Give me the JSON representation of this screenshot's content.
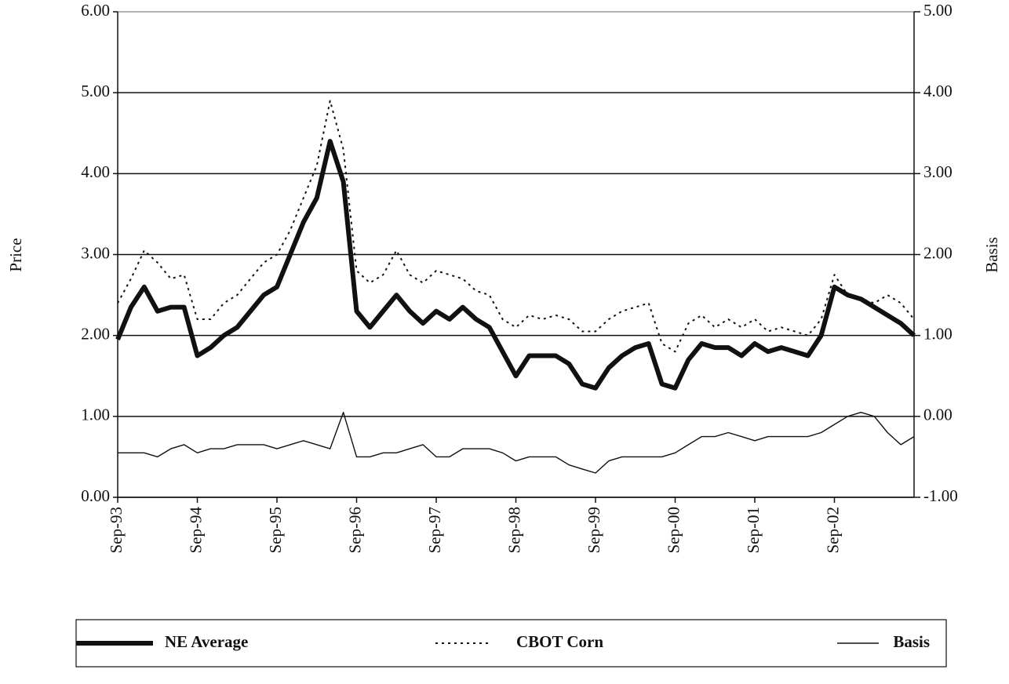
{
  "chart_data": {
    "type": "line",
    "x": [
      "Sep-93",
      "Nov-93",
      "Jan-94",
      "Mar-94",
      "May-94",
      "Jul-94",
      "Sep-94",
      "Nov-94",
      "Jan-95",
      "Mar-95",
      "May-95",
      "Jul-95",
      "Sep-95",
      "Nov-95",
      "Jan-96",
      "Mar-96",
      "May-96",
      "Jul-96",
      "Sep-96",
      "Nov-96",
      "Jan-97",
      "Mar-97",
      "May-97",
      "Jul-97",
      "Sep-97",
      "Nov-97",
      "Jan-98",
      "Mar-98",
      "May-98",
      "Jul-98",
      "Sep-98",
      "Nov-98",
      "Jan-99",
      "Mar-99",
      "May-99",
      "Jul-99",
      "Sep-99",
      "Nov-99",
      "Jan-00",
      "Mar-00",
      "May-00",
      "Jul-00",
      "Sep-00",
      "Nov-00",
      "Jan-01",
      "Mar-01",
      "May-01",
      "Jul-01",
      "Sep-01",
      "Nov-01",
      "Jan-02",
      "Mar-02",
      "May-02",
      "Jul-02",
      "Sep-02",
      "Nov-02",
      "Jan-03",
      "Mar-03",
      "May-03",
      "Jul-03",
      "Sep-03"
    ],
    "xticks": [
      "Sep-93",
      "Sep-94",
      "Sep-95",
      "Sep-96",
      "Sep-97",
      "Sep-98",
      "Sep-99",
      "Sep-00",
      "Sep-01",
      "Sep-02"
    ],
    "ylabel": "Price",
    "y2label": "Basis",
    "ylim": [
      0,
      6
    ],
    "yticks": [
      {
        "value": 0,
        "label": "0.00"
      },
      {
        "value": 1,
        "label": "1.00"
      },
      {
        "value": 2,
        "label": "2.00"
      },
      {
        "value": 3,
        "label": "3.00"
      },
      {
        "value": 4,
        "label": "4.00"
      },
      {
        "value": 5,
        "label": "5.00"
      },
      {
        "value": 6,
        "label": "6.00"
      }
    ],
    "y2lim": [
      -1,
      5
    ],
    "y2ticks": [
      {
        "value": -1,
        "label": "-1.00"
      },
      {
        "value": 0,
        "label": "0.00"
      },
      {
        "value": 1,
        "label": "1.00"
      },
      {
        "value": 2,
        "label": "2.00"
      },
      {
        "value": 3,
        "label": "3.00"
      },
      {
        "value": 4,
        "label": "4.00"
      },
      {
        "value": 5,
        "label": "5.00"
      }
    ],
    "grid": true,
    "series": [
      {
        "name": "NE Average",
        "color": "#111111",
        "values": [
          1.95,
          2.35,
          2.6,
          2.3,
          2.35,
          2.35,
          1.75,
          1.85,
          2.0,
          2.1,
          2.3,
          2.5,
          2.6,
          3.0,
          3.4,
          3.7,
          4.4,
          3.9,
          2.3,
          2.1,
          2.3,
          2.5,
          2.3,
          2.15,
          2.3,
          2.2,
          2.35,
          2.2,
          2.1,
          1.8,
          1.5,
          1.75,
          1.75,
          1.75,
          1.65,
          1.4,
          1.35,
          1.6,
          1.75,
          1.85,
          1.9,
          1.4,
          1.35,
          1.7,
          1.9,
          1.85,
          1.85,
          1.75,
          1.9,
          1.8,
          1.85,
          1.8,
          1.75,
          2.0,
          2.6,
          2.5,
          2.45,
          2.35,
          2.25,
          2.15,
          2.0
        ]
      },
      {
        "name": "CBOT Corn",
        "color": "#111111",
        "values": [
          2.4,
          2.7,
          3.05,
          2.9,
          2.7,
          2.75,
          2.2,
          2.2,
          2.4,
          2.5,
          2.7,
          2.9,
          3.0,
          3.3,
          3.7,
          4.1,
          4.9,
          4.3,
          2.8,
          2.65,
          2.75,
          3.05,
          2.75,
          2.65,
          2.8,
          2.75,
          2.7,
          2.55,
          2.5,
          2.2,
          2.1,
          2.25,
          2.2,
          2.25,
          2.2,
          2.05,
          2.05,
          2.2,
          2.3,
          2.35,
          2.4,
          1.9,
          1.8,
          2.15,
          2.25,
          2.1,
          2.2,
          2.1,
          2.2,
          2.05,
          2.1,
          2.05,
          2.0,
          2.2,
          2.75,
          2.5,
          2.45,
          2.4,
          2.5,
          2.4,
          2.2
        ]
      },
      {
        "name": "Basis",
        "color": "#111111",
        "axis": "y2",
        "values": [
          -0.45,
          -0.45,
          -0.45,
          -0.5,
          -0.4,
          -0.35,
          -0.45,
          -0.4,
          -0.4,
          -0.35,
          -0.35,
          -0.35,
          -0.4,
          -0.35,
          -0.3,
          -0.35,
          -0.4,
          0.05,
          -0.5,
          -0.5,
          -0.45,
          -0.45,
          -0.4,
          -0.35,
          -0.5,
          -0.5,
          -0.4,
          -0.4,
          -0.4,
          -0.45,
          -0.55,
          -0.5,
          -0.5,
          -0.5,
          -0.6,
          -0.65,
          -0.7,
          -0.55,
          -0.5,
          -0.5,
          -0.5,
          -0.5,
          -0.45,
          -0.35,
          -0.25,
          -0.25,
          -0.2,
          -0.25,
          -0.3,
          -0.25,
          -0.25,
          -0.25,
          -0.25,
          -0.2,
          -0.1,
          0.0,
          0.05,
          0.0,
          -0.2,
          -0.35,
          -0.25
        ]
      }
    ]
  }
}
